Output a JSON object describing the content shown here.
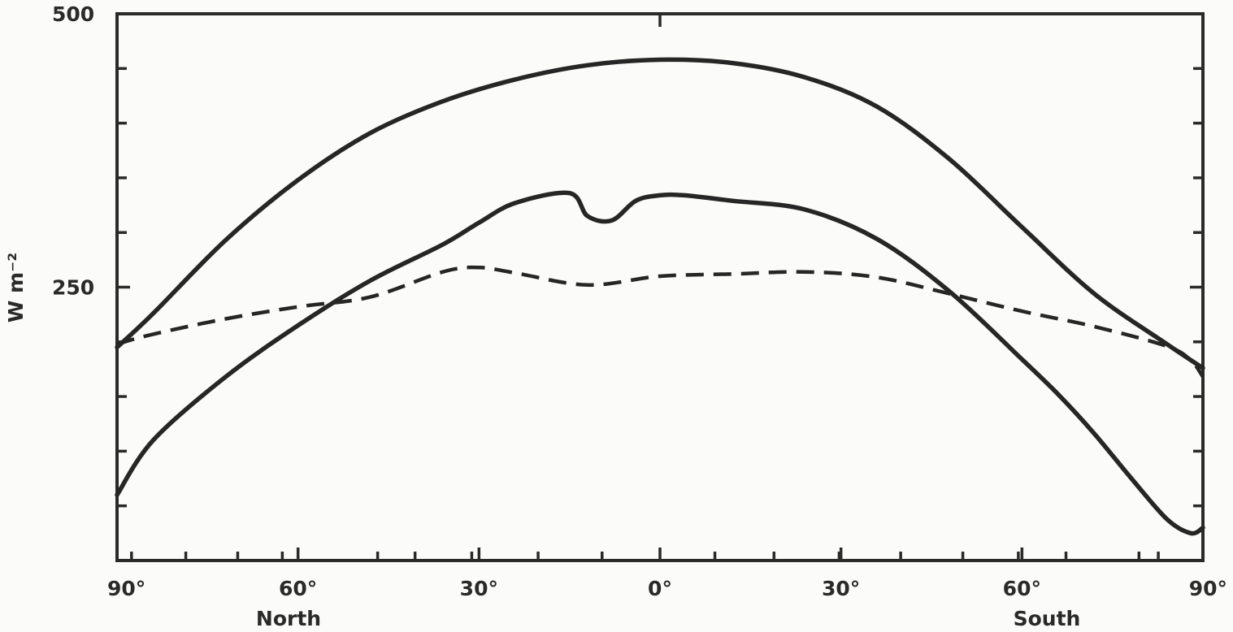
{
  "chart_data": {
    "type": "line",
    "title": "",
    "xlabel": "",
    "ylabel": "W m⁻²",
    "xlim": [
      -90,
      90
    ],
    "ylim": [
      0,
      500
    ],
    "grid": false,
    "legend": "none",
    "region_labels": {
      "north": "North",
      "south": "South"
    },
    "x_tick_labels": [
      {
        "value": -90,
        "label": "90°"
      },
      {
        "value": -60,
        "label": "60°"
      },
      {
        "value": -30,
        "label": "30°"
      },
      {
        "value": 0,
        "label": "0°"
      },
      {
        "value": 30,
        "label": "30°"
      },
      {
        "value": 60,
        "label": "60°"
      },
      {
        "value": 90,
        "label": "90°"
      }
    ],
    "y_tick_labels": [
      {
        "value": 500,
        "label": "500"
      },
      {
        "value": 250,
        "label": "250"
      }
    ],
    "x_minor_ticks": [
      -87.6,
      -78.6,
      -70,
      -62.6,
      -46.8,
      -40.6,
      -31.2,
      -20.2,
      -9.6,
      9.1,
      18.9,
      29.7,
      39.9,
      50.2,
      59.4,
      67.3,
      79.4,
      82.6
    ],
    "y_minor_ticks": [
      450,
      400,
      350,
      300,
      200,
      150,
      100,
      50
    ],
    "series": [
      {
        "style": "solid",
        "x": [
          -90,
          -84,
          -72,
          -60,
          -48,
          -36,
          -24,
          -12,
          0,
          12,
          24,
          36,
          48,
          60,
          72,
          84,
          90
        ],
        "y": [
          195,
          226,
          293,
          348,
          391,
          420,
          440,
          453,
          458,
          455,
          442,
          415,
          367,
          305,
          244,
          198,
          176
        ]
      },
      {
        "style": "solid",
        "x": [
          -90,
          -84,
          -72,
          -60,
          -48,
          -36,
          -30,
          -24,
          -15,
          -12,
          -8,
          -4,
          0,
          4,
          12,
          24,
          36,
          48,
          60,
          66,
          72,
          78,
          84,
          88,
          90
        ],
        "y": [
          60,
          110,
          168,
          215,
          256,
          289,
          309,
          327,
          336,
          315,
          311,
          329,
          334,
          334,
          329,
          321,
          294,
          246,
          184,
          152,
          116,
          76,
          38,
          25,
          30
        ]
      },
      {
        "style": "dashed",
        "x": [
          -90,
          -84,
          -72,
          -60,
          -48,
          -36,
          -30,
          -24,
          -12,
          0,
          12,
          24,
          36,
          48,
          60,
          72,
          84,
          88,
          90
        ],
        "y": [
          198,
          207,
          221,
          232,
          241,
          264,
          268,
          263,
          252,
          260,
          262,
          264,
          259,
          244,
          228,
          214,
          196,
          183,
          168
        ]
      }
    ]
  }
}
